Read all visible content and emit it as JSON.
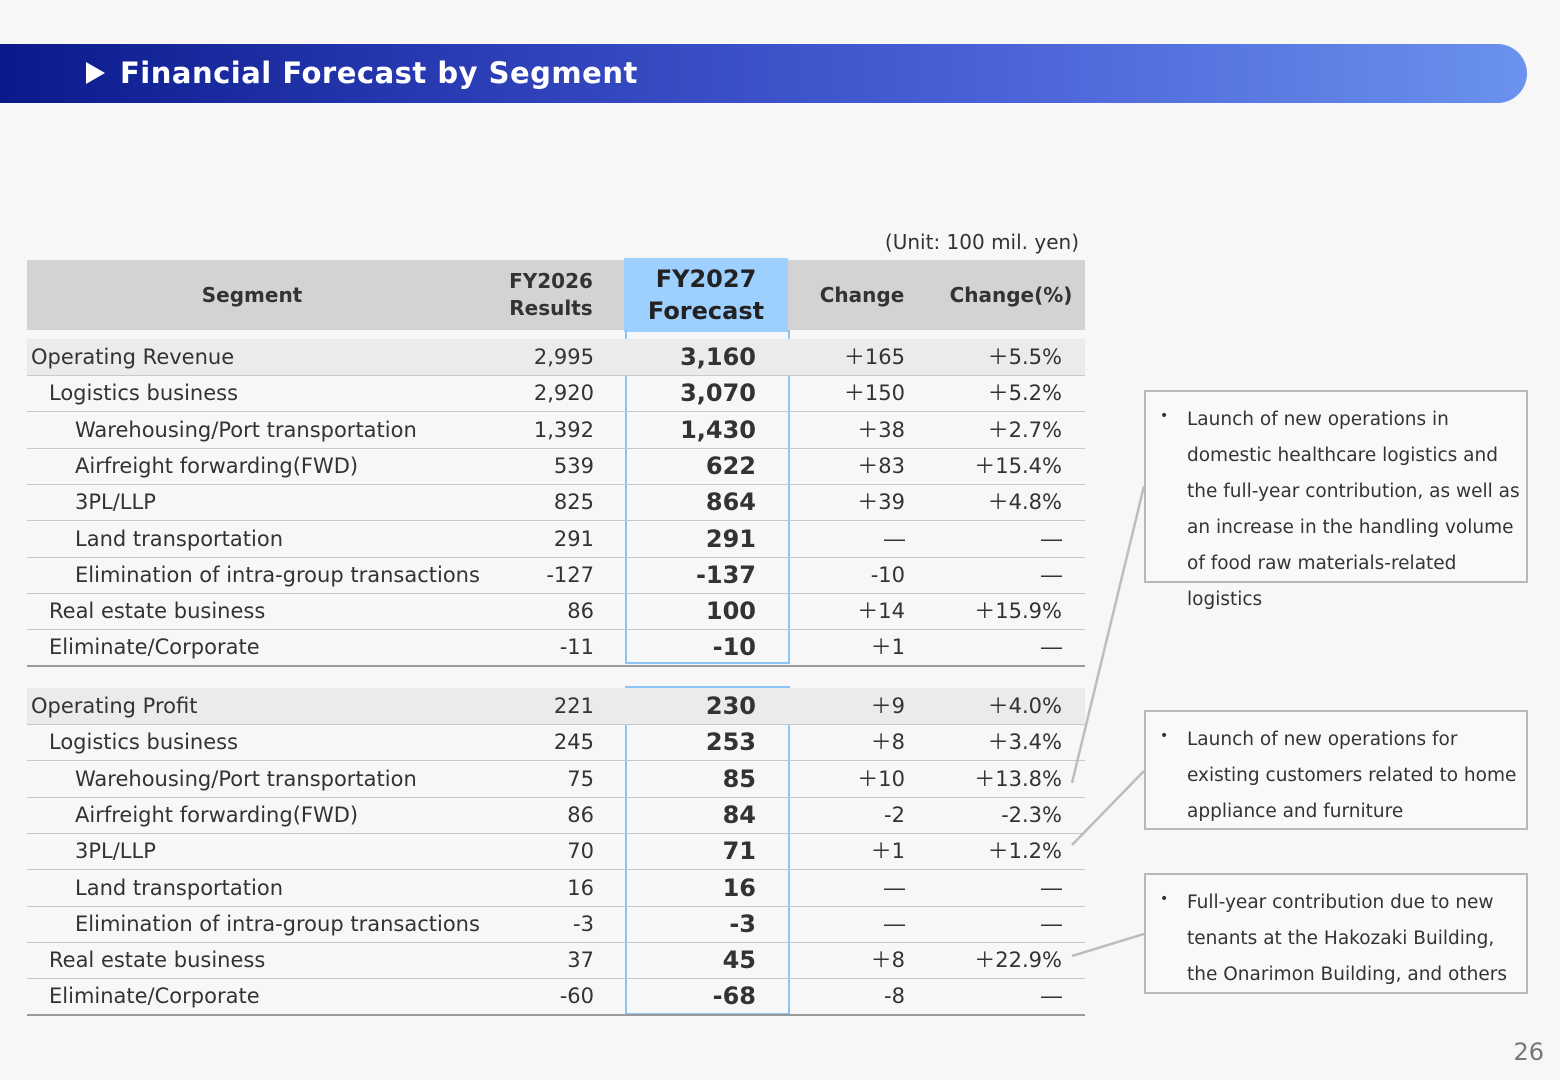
{
  "title": "Financial Forecast by Segment",
  "unit": "(Unit: 100 mil. yen)",
  "headers": {
    "segment": "Segment",
    "results_l1": "FY2026",
    "results_l2": "Results",
    "forecast_l1": "FY2027",
    "forecast_l2": "Forecast",
    "change": "Change",
    "change_pct": "Change(%)"
  },
  "revenue_rows": [
    {
      "segment": "Operating Revenue",
      "fy2026": "2,995",
      "fy2027": "3,160",
      "change": "＋165",
      "pct": "＋5.5%"
    },
    {
      "segment": "Logistics business",
      "fy2026": "2,920",
      "fy2027": "3,070",
      "change": "＋150",
      "pct": "＋5.2%"
    },
    {
      "segment": "Warehousing/Port transportation",
      "fy2026": "1,392",
      "fy2027": "1,430",
      "change": "＋38",
      "pct": "＋2.7%"
    },
    {
      "segment": "Airfreight forwarding(FWD)",
      "fy2026": "539",
      "fy2027": "622",
      "change": "＋83",
      "pct": "＋15.4%"
    },
    {
      "segment": "3PL/LLP",
      "fy2026": "825",
      "fy2027": "864",
      "change": "＋39",
      "pct": "＋4.8%"
    },
    {
      "segment": "Land transportation",
      "fy2026": "291",
      "fy2027": "291",
      "change": "―",
      "pct": "―"
    },
    {
      "segment": "Elimination of intra-group transactions",
      "fy2026": "-127",
      "fy2027": "-137",
      "change": "-10",
      "pct": "―"
    },
    {
      "segment": "Real estate business",
      "fy2026": "86",
      "fy2027": "100",
      "change": "＋14",
      "pct": "＋15.9%"
    },
    {
      "segment": "Eliminate/Corporate",
      "fy2026": "-11",
      "fy2027": "-10",
      "change": "＋1",
      "pct": "―"
    }
  ],
  "profit_rows": [
    {
      "segment": "Operating Profit",
      "fy2026": "221",
      "fy2027": "230",
      "change": "＋9",
      "pct": "＋4.0%"
    },
    {
      "segment": "Logistics business",
      "fy2026": "245",
      "fy2027": "253",
      "change": "＋8",
      "pct": "＋3.4%"
    },
    {
      "segment": "Warehousing/Port transportation",
      "fy2026": "75",
      "fy2027": "85",
      "change": "＋10",
      "pct": "＋13.8%"
    },
    {
      "segment": "Airfreight forwarding(FWD)",
      "fy2026": "86",
      "fy2027": "84",
      "change": "-2",
      "pct": "-2.3%"
    },
    {
      "segment": "3PL/LLP",
      "fy2026": "70",
      "fy2027": "71",
      "change": "＋1",
      "pct": "＋1.2%"
    },
    {
      "segment": "Land transportation",
      "fy2026": "16",
      "fy2027": "16",
      "change": "―",
      "pct": "―"
    },
    {
      "segment": "Elimination of intra-group transactions",
      "fy2026": "-3",
      "fy2027": "-3",
      "change": "―",
      "pct": "―"
    },
    {
      "segment": "Real estate business",
      "fy2026": "37",
      "fy2027": "45",
      "change": "＋8",
      "pct": "＋22.9%"
    },
    {
      "segment": "Eliminate/Corporate",
      "fy2026": "-60",
      "fy2027": "-68",
      "change": "-8",
      "pct": "―"
    }
  ],
  "notes": [
    {
      "bullet": "•",
      "text": "Launch of new operations in domestic healthcare logistics and the full-year contribution, as well as an increase in the handling volume of food raw materials-related logistics"
    },
    {
      "bullet": "•",
      "text": "Launch of new operations for existing customers related to home appliance and furniture"
    },
    {
      "bullet": "•",
      "text": "Full-year contribution due to new tenants at the Hakozaki Building, the Onarimon Building, and others"
    }
  ],
  "page_number": "26"
}
